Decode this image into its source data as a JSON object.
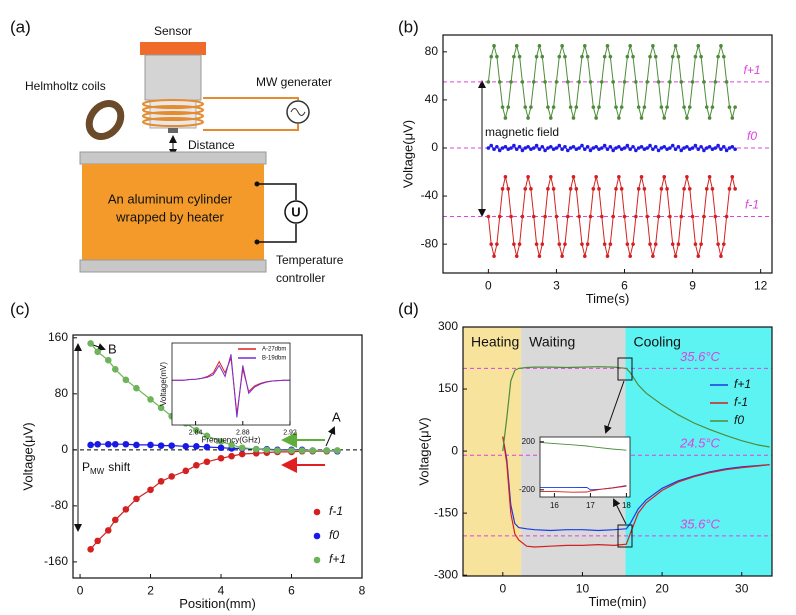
{
  "diagram": {
    "label": "(a)",
    "sensor": "Sensor",
    "coils": "Helmholtz coils",
    "generator": "MW generater",
    "distance": "Distance",
    "cylinder": [
      "An aluminum cylinder",
      "wrapped by heater"
    ],
    "meter": "U",
    "controller": [
      "Temperature",
      "controller"
    ]
  },
  "chart_data": [
    {
      "type": "line",
      "label": "(b)",
      "xlabel": "Time(s)",
      "ylabel": "Voltage(μV)",
      "annotation": "magnetic field",
      "markers": true,
      "xlim": [
        -2,
        12.5
      ],
      "ylim": [
        -104,
        94
      ],
      "xticks": [
        0,
        3,
        6,
        9,
        12
      ],
      "yticks": [
        -80,
        -40,
        0,
        40,
        80
      ],
      "reference_color": "#e040e0",
      "reference_lines": [
        {
          "value": 55,
          "label": "f+1"
        },
        {
          "value": 0,
          "label": "f0"
        },
        {
          "value": -57,
          "label": "f-1"
        }
      ],
      "x": [
        0,
        0.125,
        0.25,
        0.375,
        0.5,
        0.625,
        0.75,
        0.875,
        1,
        1.125,
        1.25,
        1.375,
        1.5,
        1.625,
        1.75,
        1.875,
        2,
        2.125,
        2.25,
        2.375,
        2.5,
        2.625,
        2.75,
        2.875,
        3,
        3.125,
        3.25,
        3.375,
        3.5,
        3.625,
        3.75,
        3.875,
        4,
        4.125,
        4.25,
        4.375,
        4.5,
        4.625,
        4.75,
        4.875,
        5,
        5.125,
        5.25,
        5.375,
        5.5,
        5.625,
        5.75,
        5.875,
        6,
        6.125,
        6.25,
        6.375,
        6.5,
        6.625,
        6.75,
        6.875,
        7,
        7.125,
        7.25,
        7.375,
        7.5,
        7.625,
        7.75,
        7.875,
        8,
        8.125,
        8.25,
        8.375,
        8.5,
        8.625,
        8.75,
        8.875,
        9,
        9.125,
        9.25,
        9.375,
        9.5,
        9.625,
        9.75,
        9.875,
        10,
        10.125,
        10.25,
        10.375,
        10.5,
        10.625,
        10.75,
        10.875
      ],
      "series": [
        {
          "name": "f+1",
          "color": "#4e8c3a",
          "values": [
            55,
            76,
            85,
            76,
            55,
            34,
            25,
            34,
            55,
            76,
            85,
            76,
            55,
            34,
            25,
            34,
            55,
            76,
            85,
            76,
            55,
            34,
            25,
            34,
            55,
            76,
            85,
            76,
            55,
            34,
            25,
            34,
            55,
            76,
            85,
            76,
            55,
            34,
            25,
            34,
            55,
            76,
            85,
            76,
            55,
            34,
            25,
            34,
            55,
            76,
            85,
            76,
            55,
            34,
            25,
            34,
            55,
            76,
            85,
            76,
            55,
            34,
            25,
            34,
            55,
            76,
            85,
            76,
            55,
            34,
            25,
            34,
            55,
            76,
            85,
            76,
            55,
            34,
            25,
            34,
            55,
            76,
            85,
            76,
            55,
            34,
            25,
            34
          ]
        },
        {
          "name": "f0",
          "color": "#1a1ae6",
          "values": [
            0,
            2,
            -1,
            1,
            -2,
            0,
            1,
            -1,
            0,
            2,
            -1,
            1,
            -2,
            0,
            1,
            -1,
            0,
            2,
            -1,
            1,
            -2,
            0,
            1,
            -1,
            0,
            2,
            -1,
            1,
            -2,
            0,
            1,
            -1,
            0,
            2,
            -1,
            1,
            -2,
            0,
            1,
            -1,
            0,
            2,
            -1,
            1,
            -2,
            0,
            1,
            -1,
            0,
            2,
            -1,
            1,
            -2,
            0,
            1,
            -1,
            0,
            2,
            -1,
            1,
            -2,
            0,
            1,
            -1,
            0,
            2,
            -1,
            1,
            -2,
            0,
            1,
            -1,
            0,
            2,
            -1,
            1,
            -2,
            0,
            1,
            -1,
            0,
            2,
            -1,
            1,
            -2,
            0,
            1,
            -1
          ]
        },
        {
          "name": "f-1",
          "color": "#d42020",
          "values": [
            -57,
            -80,
            -90,
            -80,
            -57,
            -34,
            -24,
            -34,
            -57,
            -80,
            -90,
            -80,
            -57,
            -34,
            -24,
            -34,
            -57,
            -80,
            -90,
            -80,
            -57,
            -34,
            -24,
            -34,
            -57,
            -80,
            -90,
            -80,
            -57,
            -34,
            -24,
            -34,
            -57,
            -80,
            -90,
            -80,
            -57,
            -34,
            -24,
            -34,
            -57,
            -80,
            -90,
            -80,
            -57,
            -34,
            -24,
            -34,
            -57,
            -80,
            -90,
            -80,
            -57,
            -34,
            -24,
            -34,
            -57,
            -80,
            -90,
            -80,
            -57,
            -34,
            -24,
            -34,
            -57,
            -80,
            -90,
            -80,
            -57,
            -34,
            -24,
            -34,
            -57,
            -80,
            -90,
            -80,
            -57,
            -34,
            -24,
            -34,
            -57,
            -80,
            -90,
            -80,
            -57,
            -34,
            -24,
            -34
          ]
        }
      ]
    },
    {
      "type": "scatter",
      "label": "(c)",
      "xlabel": "Position(mm)",
      "ylabel": "Voltage(μV)",
      "markers": true,
      "legend": "lower right",
      "annotations": [
        "B",
        "A"
      ],
      "shift_label": {
        "text": "P",
        "subscript": "MW",
        "suffix": "shift"
      },
      "xlim": [
        -0.2,
        8
      ],
      "ylim": [
        -183,
        164
      ],
      "xticks": [
        0,
        2,
        4,
        6,
        8
      ],
      "yticks": [
        -160,
        -80,
        0,
        80,
        160
      ],
      "reference_color": "#000000",
      "reference_lines": [
        {
          "value": 0
        }
      ],
      "x": [
        0.3,
        0.5,
        0.8,
        1,
        1.3,
        1.6,
        2,
        2.3,
        2.6,
        3,
        3.3,
        3.6,
        4,
        4.3,
        4.6,
        5,
        5.3,
        5.6,
        6,
        6.3,
        6.6,
        7,
        7.3
      ],
      "series": [
        {
          "name": "f-1",
          "color": "#d42020",
          "values": [
            -142,
            -130,
            -115,
            -100,
            -85,
            -70,
            -57,
            -45,
            -38,
            -30,
            -22,
            -17,
            -12,
            -9,
            -6,
            -5,
            -4,
            -3,
            -3,
            -2,
            -2,
            -2,
            -1
          ]
        },
        {
          "name": "f0",
          "color": "#1a1ae6",
          "values": [
            7,
            8,
            8,
            8,
            8,
            7,
            7,
            6,
            6,
            5,
            5,
            4,
            3,
            2,
            2,
            1,
            1,
            0,
            0,
            0,
            -1,
            -1,
            -2
          ]
        },
        {
          "name": "f+1",
          "color": "#6db35a",
          "values": [
            152,
            140,
            128,
            115,
            100,
            88,
            72,
            60,
            48,
            38,
            28,
            20,
            12,
            7,
            3,
            1,
            0,
            -1,
            -1,
            -1,
            -1,
            -1,
            -1
          ]
        }
      ],
      "inset": {
        "type": "line",
        "xlabel": "Frequency(GHz)",
        "ylabel": "Voltage(mV)",
        "legend": "upper right",
        "xlim": [
          2.82,
          2.92
        ],
        "ylim": [
          -1.2,
          1.0
        ],
        "xticks": [
          2.84,
          2.88,
          2.92
        ],
        "x": [
          2.82,
          2.825,
          2.83,
          2.835,
          2.84,
          2.845,
          2.85,
          2.855,
          2.86,
          2.865,
          2.87,
          2.875,
          2.88,
          2.885,
          2.89,
          2.895,
          2.9,
          2.905,
          2.91,
          2.915,
          2.92
        ],
        "series": [
          {
            "name": "A-27dbm",
            "color": "#e02020",
            "values": [
              0,
              0,
              0,
              0.02,
              0.03,
              0.05,
              0.1,
              0.2,
              0.5,
              0.2,
              0.6,
              -0.9,
              0.3,
              -0.3,
              -0.15,
              -0.08,
              -0.04,
              -0.02,
              -0.01,
              0,
              0
            ]
          },
          {
            "name": "B-19dbm",
            "color": "#7b2fd0",
            "values": [
              0,
              0,
              0,
              0.02,
              0.03,
              0.05,
              0.08,
              0.15,
              0.4,
              0.1,
              0.7,
              -1.0,
              0.4,
              -0.35,
              -0.18,
              -0.1,
              -0.05,
              -0.02,
              -0.01,
              0,
              0
            ]
          }
        ]
      }
    },
    {
      "type": "line",
      "label": "(d)",
      "xlabel": "Time(min)",
      "ylabel": "Voltage(μV)",
      "legend": "upper right",
      "xlim": [
        -5,
        33.8
      ],
      "ylim": [
        -302,
        300
      ],
      "xticks": [
        0,
        10,
        20,
        30
      ],
      "yticks": [
        -300,
        -150,
        0,
        150,
        300
      ],
      "regions": [
        {
          "label": "Heating",
          "start": -5,
          "end": 2.3,
          "color": "#f8e39d"
        },
        {
          "label": "Waiting",
          "start": 2.3,
          "end": 15.4,
          "color": "#d9d9d9"
        },
        {
          "label": "Cooling",
          "start": 15.4,
          "end": 33.8,
          "color": "#5ef3f3"
        }
      ],
      "reference_color": "#e040e0",
      "reference_lines": [
        {
          "value": 200,
          "label": "35.6°C"
        },
        {
          "value": -10,
          "label": "24.5°C"
        },
        {
          "value": -205,
          "label": "35.6°C"
        }
      ],
      "x": [
        0,
        0.5,
        1,
        1.5,
        2,
        3,
        4,
        6,
        8,
        10,
        12,
        14,
        15.5,
        16,
        17,
        18,
        20,
        22,
        24,
        26,
        28,
        30,
        32,
        33.5
      ],
      "series": [
        {
          "name": "f+1",
          "color": "#1a3ae6",
          "values": [
            35,
            -20,
            -130,
            -175,
            -185,
            -188,
            -190,
            -192,
            -190,
            -190,
            -192,
            -190,
            -188,
            -175,
            -140,
            -118,
            -90,
            -72,
            -60,
            -50,
            -43,
            -38,
            -35,
            -33
          ]
        },
        {
          "name": "f-1",
          "color": "#d42020",
          "values": [
            35,
            -30,
            -150,
            -200,
            -215,
            -230,
            -232,
            -230,
            -228,
            -228,
            -226,
            -228,
            -225,
            -200,
            -150,
            -125,
            -95,
            -75,
            -62,
            -52,
            -45,
            -40,
            -36,
            -33
          ]
        },
        {
          "name": "f0",
          "color": "#4e8c3a",
          "values": [
            0,
            80,
            170,
            195,
            200,
            202,
            203,
            203,
            202,
            203,
            204,
            203,
            200,
            190,
            160,
            140,
            112,
            88,
            68,
            52,
            38,
            25,
            15,
            10
          ]
        }
      ],
      "inset": {
        "type": "line",
        "xlim": [
          15.6,
          18.1
        ],
        "ylim": [
          -260,
          240
        ],
        "xticks": [
          16,
          17,
          18
        ],
        "yticks": [
          -200,
          200
        ],
        "x": [
          15.6,
          16,
          16.5,
          16.9,
          17,
          17.3,
          17.6,
          18
        ],
        "series": [
          {
            "name": "f0",
            "color": "#4e8c3a",
            "values": [
              195,
              185,
              175,
              165,
              160,
              150,
              140,
              130
            ]
          },
          {
            "name": "f+1",
            "color": "#1a3ae6",
            "values": [
              -180,
              -180,
              -182,
              -180,
              -200,
              -195,
              -185,
              -165
            ]
          },
          {
            "name": "f-1",
            "color": "#d42020",
            "values": [
              -215,
              -215,
              -220,
              -218,
              -210,
              -195,
              -185,
              -170
            ]
          }
        ]
      }
    }
  ]
}
